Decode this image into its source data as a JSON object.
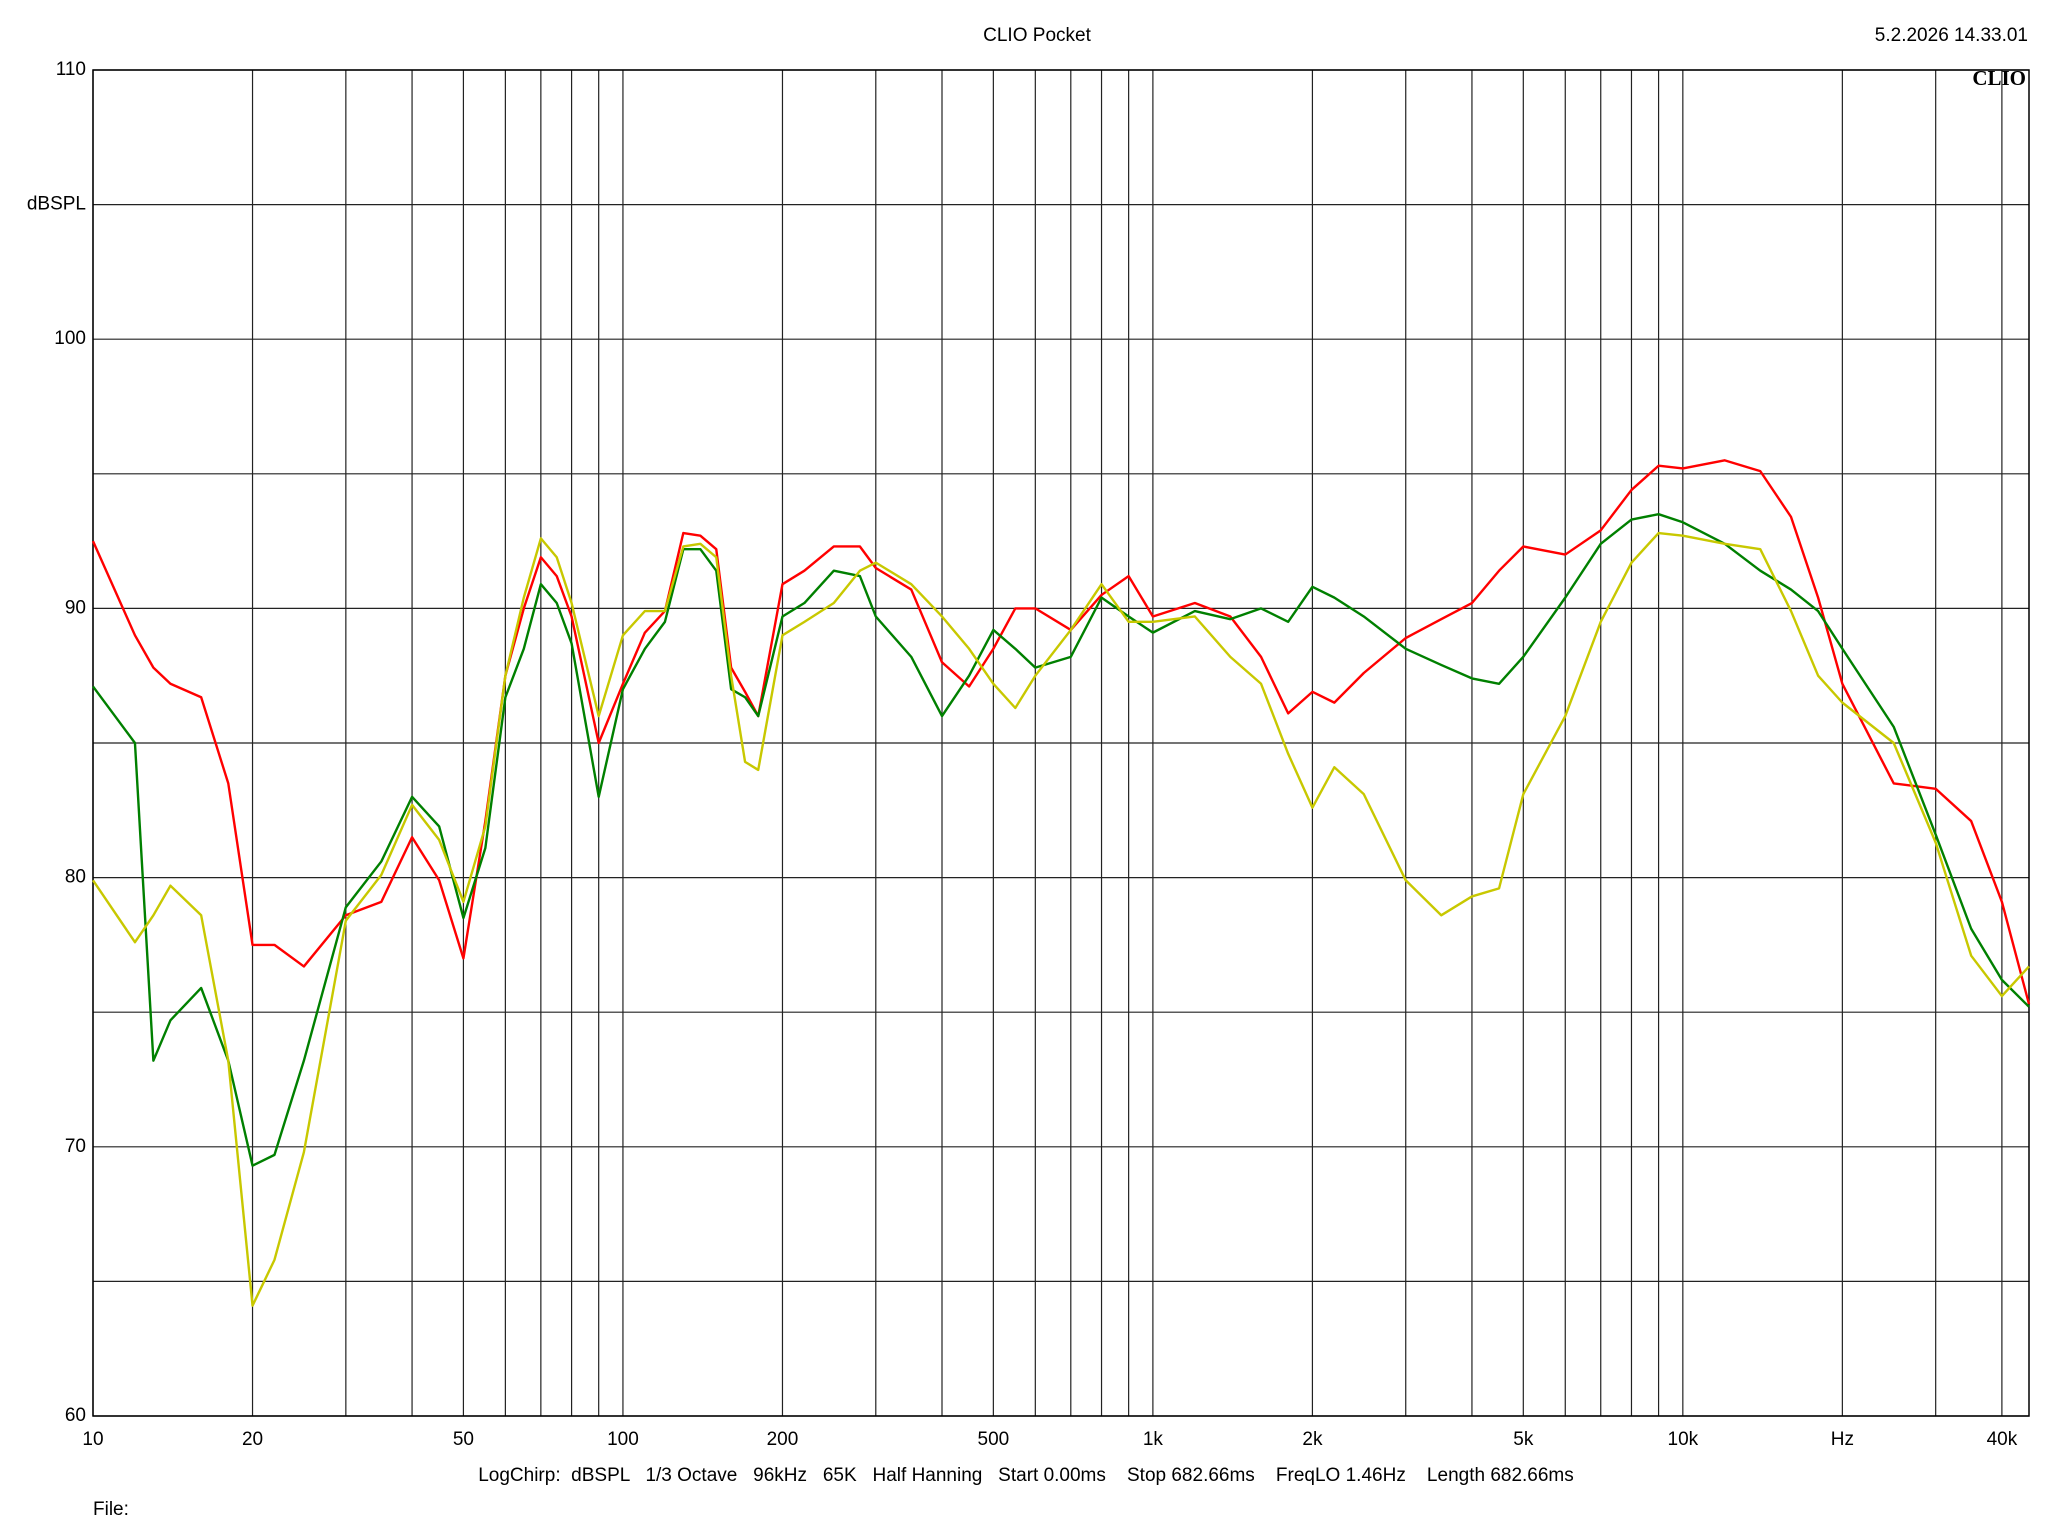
{
  "chart_data": {
    "type": "line",
    "title": "CLIO Pocket",
    "timestamp": "5.2.2026 14.33.01",
    "logo": "CLIO",
    "y_label": "dBSPL",
    "settings": "LogChirp:  dBSPL   1/3 Octave   96kHz   65K   Half Hanning   Start 0.00ms    Stop 682.66ms    FreqLO 1.46Hz    Length 682.66ms",
    "file_label": "File:",
    "xscale": "log",
    "grid": true,
    "xlim": [
      10,
      45000
    ],
    "ylim": [
      60,
      110
    ],
    "xticks": [
      10,
      20,
      50,
      100,
      200,
      500,
      {
        "value": 1000,
        "label": "1k"
      },
      {
        "value": 2000,
        "label": "2k"
      },
      {
        "value": 5000,
        "label": "5k"
      },
      {
        "value": 10000,
        "label": "10k"
      },
      {
        "value": 20000,
        "label": "Hz"
      },
      {
        "value": 40000,
        "label": "40k"
      }
    ],
    "xminor": [
      30,
      40,
      60,
      70,
      80,
      90,
      300,
      400,
      600,
      700,
      800,
      900,
      3000,
      4000,
      6000,
      7000,
      8000,
      9000,
      30000
    ],
    "yticks": [
      60,
      70,
      80,
      90,
      100,
      110
    ],
    "yminor": [
      65,
      75,
      85,
      95,
      105
    ],
    "x": [
      10,
      12,
      13,
      14,
      16,
      18,
      20,
      22,
      25,
      30,
      35,
      40,
      45,
      50,
      55,
      60,
      65,
      70,
      75,
      80,
      90,
      100,
      110,
      120,
      130,
      140,
      150,
      160,
      170,
      180,
      200,
      220,
      250,
      280,
      300,
      350,
      400,
      450,
      500,
      550,
      600,
      700,
      800,
      900,
      1000,
      1200,
      1400,
      1600,
      1800,
      2000,
      2200,
      2500,
      3000,
      3500,
      4000,
      4500,
      5000,
      6000,
      7000,
      8000,
      9000,
      10000,
      12000,
      14000,
      16000,
      18000,
      20000,
      25000,
      30000,
      35000,
      40000,
      45000
    ],
    "series": [
      {
        "color": "#ff0000",
        "values": [
          92.5,
          89.0,
          87.8,
          87.2,
          86.7,
          83.5,
          77.5,
          77.5,
          76.7,
          78.6,
          79.1,
          81.5,
          79.9,
          77.0,
          82.1,
          87.5,
          90.0,
          91.9,
          91.2,
          89.7,
          85.0,
          87.2,
          89.1,
          89.9,
          92.8,
          92.7,
          92.2,
          87.8,
          86.9,
          86.0,
          90.9,
          91.4,
          92.3,
          92.3,
          91.5,
          90.7,
          88.0,
          87.1,
          88.5,
          90.0,
          90.0,
          89.2,
          90.5,
          91.2,
          89.7,
          90.2,
          89.7,
          88.2,
          86.1,
          86.9,
          86.5,
          87.6,
          88.9,
          89.6,
          90.2,
          91.4,
          92.3,
          92.0,
          92.9,
          94.4,
          95.3,
          95.2,
          95.5,
          95.1,
          93.4,
          90.4,
          87.2,
          83.5,
          83.3,
          82.1,
          79.1,
          75.3
        ]
      },
      {
        "color": "#008000",
        "values": [
          87.1,
          85.0,
          73.2,
          74.7,
          75.9,
          73.2,
          69.3,
          69.7,
          73.2,
          78.9,
          80.6,
          83.0,
          81.9,
          78.5,
          81.1,
          86.7,
          88.5,
          90.9,
          90.2,
          88.7,
          83.0,
          87.0,
          88.5,
          89.5,
          92.2,
          92.2,
          91.4,
          87.0,
          86.7,
          86.0,
          89.7,
          90.2,
          91.4,
          91.2,
          89.7,
          88.2,
          86.0,
          87.5,
          89.2,
          88.5,
          87.8,
          88.2,
          90.4,
          89.7,
          89.1,
          89.9,
          89.6,
          90.0,
          89.5,
          90.8,
          90.4,
          89.7,
          88.5,
          87.9,
          87.4,
          87.2,
          88.2,
          90.4,
          92.4,
          93.3,
          93.5,
          93.2,
          92.4,
          91.4,
          90.7,
          89.9,
          88.5,
          85.6,
          81.6,
          78.1,
          76.2,
          75.2
        ]
      },
      {
        "color": "#c8c800",
        "values": [
          79.9,
          77.6,
          78.6,
          79.7,
          78.6,
          73.2,
          64.1,
          65.8,
          69.8,
          78.4,
          80.1,
          82.7,
          81.4,
          79.1,
          81.9,
          87.5,
          90.4,
          92.6,
          91.9,
          90.2,
          86.0,
          89.0,
          89.9,
          89.9,
          92.3,
          92.4,
          91.9,
          87.5,
          84.3,
          84.0,
          89.0,
          89.5,
          90.2,
          91.4,
          91.7,
          90.9,
          89.7,
          88.5,
          87.2,
          86.3,
          87.5,
          89.2,
          90.9,
          89.5,
          89.5,
          89.7,
          88.2,
          87.2,
          84.6,
          82.6,
          84.1,
          83.1,
          79.9,
          78.6,
          79.3,
          79.6,
          83.1,
          86.0,
          89.5,
          91.7,
          92.8,
          92.7,
          92.4,
          92.2,
          89.9,
          87.5,
          86.5,
          85.0,
          81.3,
          77.1,
          75.6,
          76.7
        ]
      }
    ]
  }
}
